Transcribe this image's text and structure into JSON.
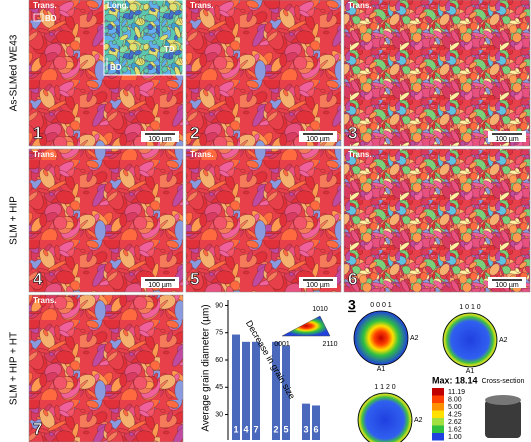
{
  "row_labels": [
    "As-SLMed WE43",
    "SLM + HIP",
    "SLM + HIP + HT"
  ],
  "panels": [
    {
      "number": "1",
      "orientation": "Trans.",
      "scale_bar": "100 µm"
    },
    {
      "number": "2",
      "orientation": "Trans.",
      "scale_bar": "100 µm"
    },
    {
      "number": "3",
      "orientation": "Trans.",
      "scale_bar": "100 µm"
    },
    {
      "number": "4",
      "orientation": "Trans.",
      "scale_bar": "100 µm"
    },
    {
      "number": "5",
      "orientation": "Trans.",
      "scale_bar": "100 µm"
    },
    {
      "number": "6",
      "orientation": "Trans.",
      "scale_bar": "100 µm"
    },
    {
      "number": "7",
      "orientation": "Trans."
    }
  ],
  "build_direction": "BD",
  "inset": {
    "label": "Long.",
    "axes": [
      "BD",
      "TD"
    ]
  },
  "chart_data": {
    "type": "bar",
    "y_label": "Average grain diameter (µm)",
    "categories": [
      "1",
      "4",
      "7",
      "2",
      "5",
      "3",
      "6"
    ],
    "values": [
      74,
      70,
      70,
      70,
      68,
      36,
      35
    ],
    "color": "#2a4fb0",
    "ylim": [
      16,
      93
    ],
    "yticks": [
      30,
      45,
      60,
      75,
      90
    ],
    "annotation": "Decrease in grain size",
    "color_key": [
      "1010",
      "0001",
      "2110"
    ]
  },
  "pole_figures": {
    "panel_label": "3",
    "titles": [
      "0 0 0 1",
      "1 0 1 0",
      "1 1 2 0"
    ],
    "axis_labels": [
      "A1",
      "A2"
    ],
    "legend_title": "Max: 18.14",
    "levels": [
      "11.19",
      "8.00",
      "5.00",
      "4.25",
      "2.62",
      "1.62",
      "1.00"
    ],
    "inset_label": "Cross-section"
  }
}
